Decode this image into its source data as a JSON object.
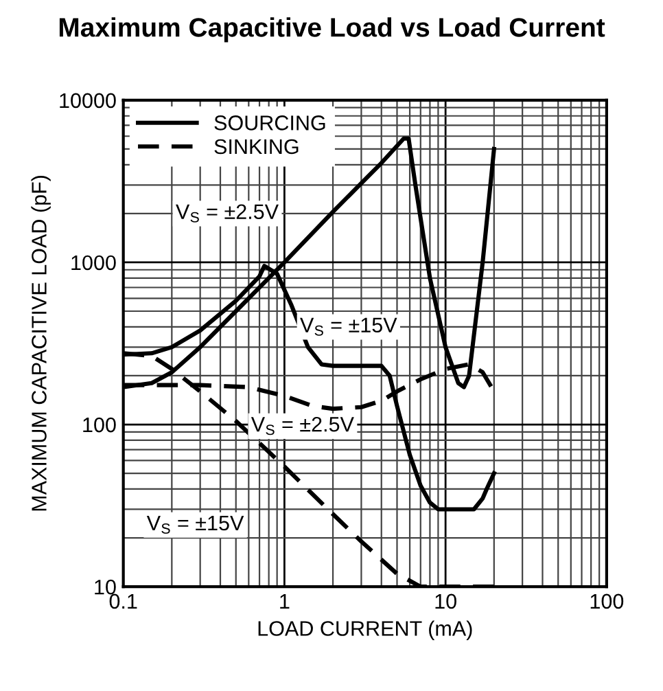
{
  "chart_data": {
    "type": "line",
    "title": "Maximum Capacitive Load vs Load Current",
    "xlabel": "LOAD CURRENT (mA)",
    "ylabel": "MAXIMUM CAPACITIVE LOAD (pF)",
    "log": "xy",
    "xlim": [
      0.1,
      100
    ],
    "ylim": [
      10,
      10000
    ],
    "xticks": [
      0.1,
      1,
      10,
      100
    ],
    "yticks": [
      10,
      100,
      1000,
      10000
    ],
    "grid": true,
    "legend": "top left",
    "marker": "none",
    "series": [
      {
        "name": "SOURCING",
        "color": "#000000",
        "line_style": "solid",
        "x": [
          0.1,
          0.15,
          0.2,
          0.3,
          0.5,
          1,
          2,
          4,
          5.5,
          5.9,
          6.5,
          8,
          10,
          12,
          13,
          14,
          17,
          20
        ],
        "values": [
          170,
          180,
          210,
          300,
          500,
          1000,
          2050,
          4100,
          5800,
          5800,
          3000,
          800,
          300,
          180,
          170,
          200,
          1000,
          5000
        ]
      },
      {
        "color": "#000000",
        "line_style": "solid",
        "x": [
          0.1,
          0.15,
          0.2,
          0.3,
          0.5,
          0.7,
          0.75,
          0.9,
          1.1,
          1.4,
          1.7,
          2,
          4,
          4.5,
          5,
          6,
          7,
          8,
          9,
          10,
          15,
          17,
          18,
          20
        ],
        "values": [
          270,
          275,
          300,
          380,
          580,
          820,
          950,
          850,
          550,
          300,
          235,
          230,
          230,
          200,
          130,
          65,
          42,
          33,
          30,
          30,
          30,
          35,
          40,
          50
        ]
      },
      {
        "name": "SINKING",
        "color": "#000000",
        "line_style": "dashed",
        "x": [
          0.1,
          0.3,
          0.6,
          1,
          1.5,
          2,
          3,
          4,
          5,
          7,
          10,
          14,
          17,
          20
        ],
        "values": [
          175,
          175,
          170,
          150,
          130,
          125,
          128,
          140,
          160,
          190,
          220,
          235,
          210,
          160
        ]
      },
      {
        "color": "#000000",
        "line_style": "dashed",
        "x": [
          0.1,
          0.15,
          0.2,
          0.3,
          0.5,
          1,
          2,
          3,
          5,
          7,
          20
        ],
        "values": [
          275,
          265,
          220,
          160,
          105,
          55,
          28,
          19,
          12,
          10,
          10
        ]
      }
    ],
    "annotations": [
      "V$_{S}$ = ±2.5V",
      "V$_{S}$ = ±15V",
      "V$_{S}$ = ±2.5V",
      "V$_{S}$ = ±15V"
    ]
  }
}
